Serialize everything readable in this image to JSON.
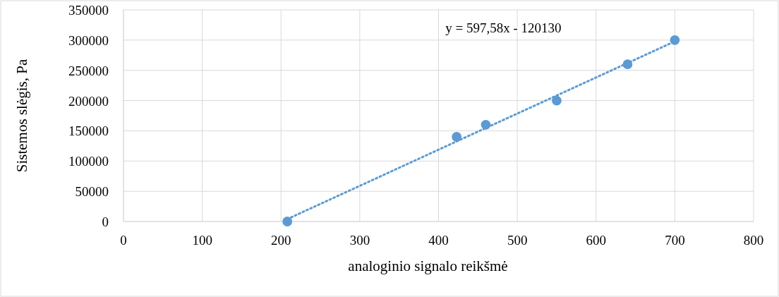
{
  "chart_data": {
    "type": "scatter",
    "xlabel": "analoginio signalo reikšmė",
    "ylabel": "Sistemos slėgis, Pa",
    "xlim": [
      0,
      800
    ],
    "xticks": [
      0,
      100,
      200,
      300,
      400,
      500,
      600,
      700,
      800
    ],
    "ylim": [
      0,
      350000
    ],
    "yticks": [
      0,
      50000,
      100000,
      150000,
      200000,
      250000,
      300000,
      350000
    ],
    "grid": true,
    "marker": "circle",
    "series": [
      {
        "color": "#5b9bd5",
        "x": [
          208,
          423,
          460,
          550,
          640,
          700
        ],
        "values": [
          0,
          140000,
          160000,
          200000,
          260000,
          300000
        ]
      },
      {
        "type": "line",
        "color": "#5b9bd5",
        "line_style": "dotted",
        "marker": "none",
        "x": [
          208,
          700
        ],
        "values": [
          4000,
          298000
        ]
      }
    ],
    "annotations": [
      "y = 597,58x - 120130"
    ]
  }
}
